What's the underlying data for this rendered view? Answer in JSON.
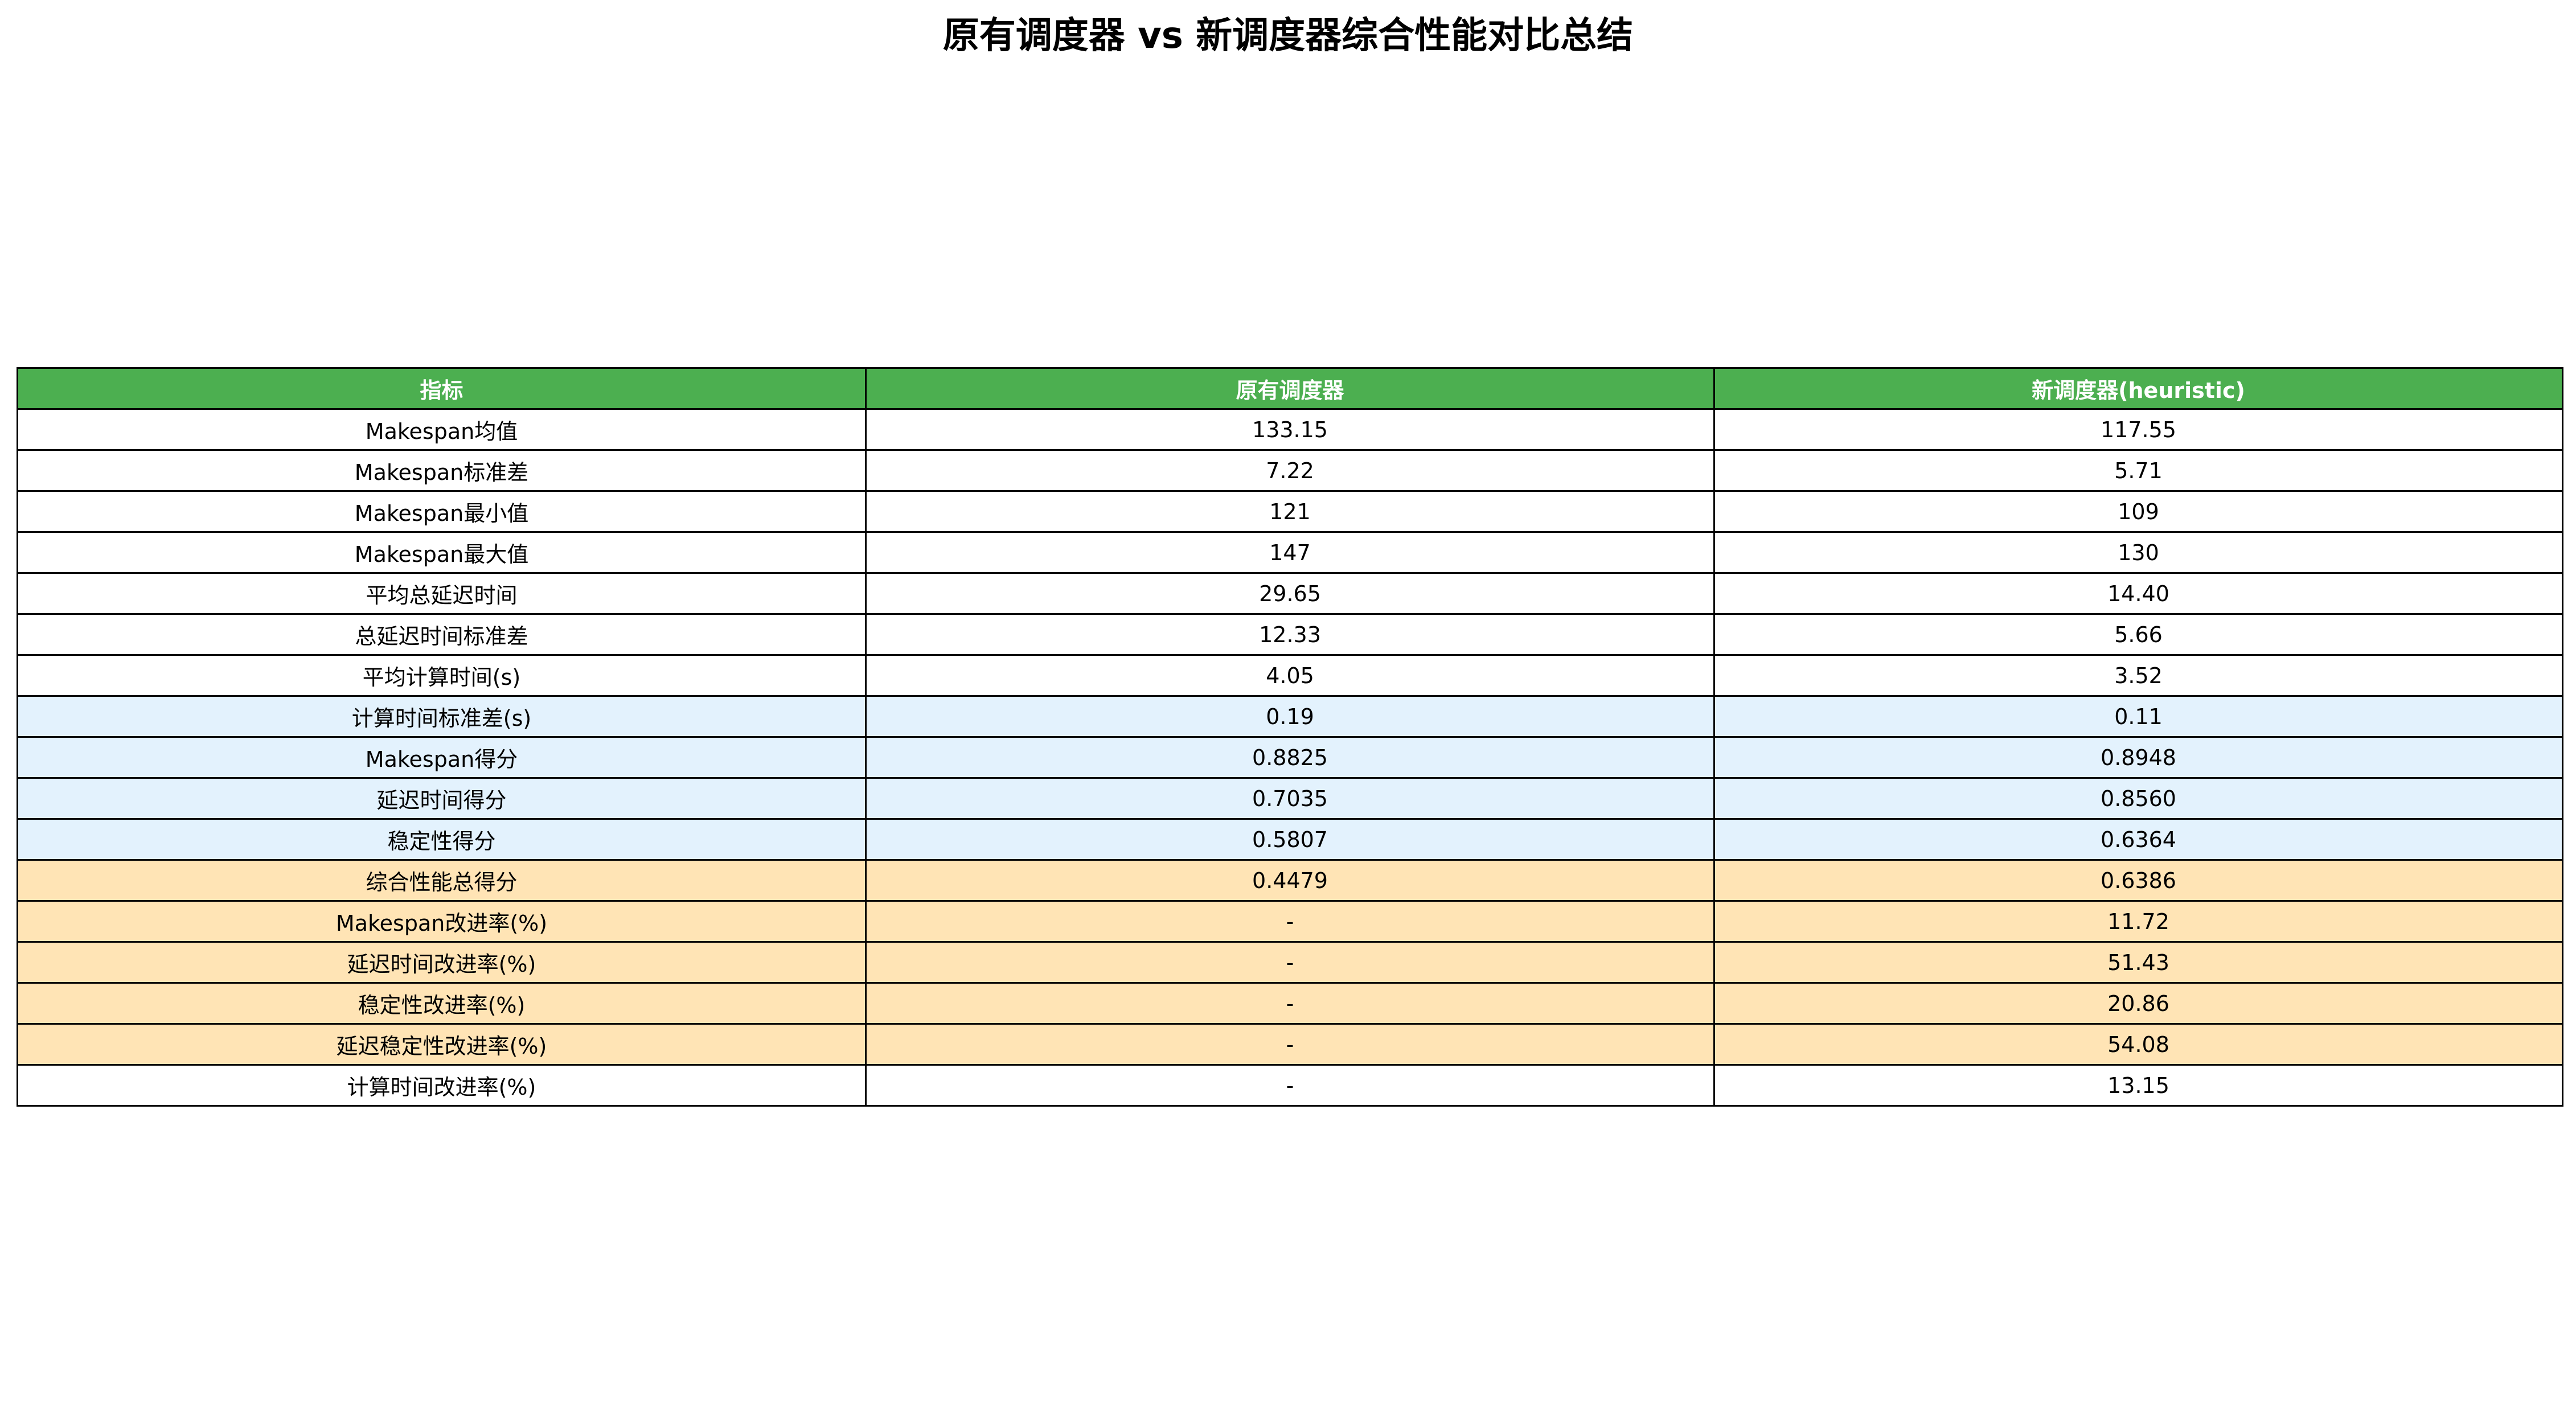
{
  "chart_data": {
    "type": "table",
    "title": "原有调度器 vs 新调度器综合性能对比总结",
    "columns": [
      "指标",
      "原有调度器",
      "新调度器(heuristic)"
    ],
    "rows": [
      {
        "cells": [
          "Makespan均值",
          "133.15",
          "117.55"
        ],
        "group": "plain"
      },
      {
        "cells": [
          "Makespan标准差",
          "7.22",
          "5.71"
        ],
        "group": "plain"
      },
      {
        "cells": [
          "Makespan最小值",
          "121",
          "109"
        ],
        "group": "plain"
      },
      {
        "cells": [
          "Makespan最大值",
          "147",
          "130"
        ],
        "group": "plain"
      },
      {
        "cells": [
          "平均总延迟时间",
          "29.65",
          "14.40"
        ],
        "group": "plain"
      },
      {
        "cells": [
          "总延迟时间标准差",
          "12.33",
          "5.66"
        ],
        "group": "plain"
      },
      {
        "cells": [
          "平均计算时间(s)",
          "4.05",
          "3.52"
        ],
        "group": "plain"
      },
      {
        "cells": [
          "计算时间标准差(s)",
          "0.19",
          "0.11"
        ],
        "group": "blue"
      },
      {
        "cells": [
          "Makespan得分",
          "0.8825",
          "0.8948"
        ],
        "group": "blue"
      },
      {
        "cells": [
          "延迟时间得分",
          "0.7035",
          "0.8560"
        ],
        "group": "blue"
      },
      {
        "cells": [
          "稳定性得分",
          "0.5807",
          "0.6364"
        ],
        "group": "blue"
      },
      {
        "cells": [
          "综合性能总得分",
          "0.4479",
          "0.6386"
        ],
        "group": "orange"
      },
      {
        "cells": [
          "Makespan改进率(%)",
          "-",
          "11.72"
        ],
        "group": "orange"
      },
      {
        "cells": [
          "延迟时间改进率(%)",
          "-",
          "51.43"
        ],
        "group": "orange"
      },
      {
        "cells": [
          "稳定性改进率(%)",
          "-",
          "20.86"
        ],
        "group": "orange"
      },
      {
        "cells": [
          "延迟稳定性改进率(%)",
          "-",
          "54.08"
        ],
        "group": "orange"
      },
      {
        "cells": [
          "计算时间改进率(%)",
          "-",
          "13.15"
        ],
        "group": "plain"
      }
    ],
    "colors": {
      "header": "#4caf50",
      "plain": "#ffffff",
      "blue": "#e3f2fd",
      "orange": "#ffe4b5"
    }
  }
}
